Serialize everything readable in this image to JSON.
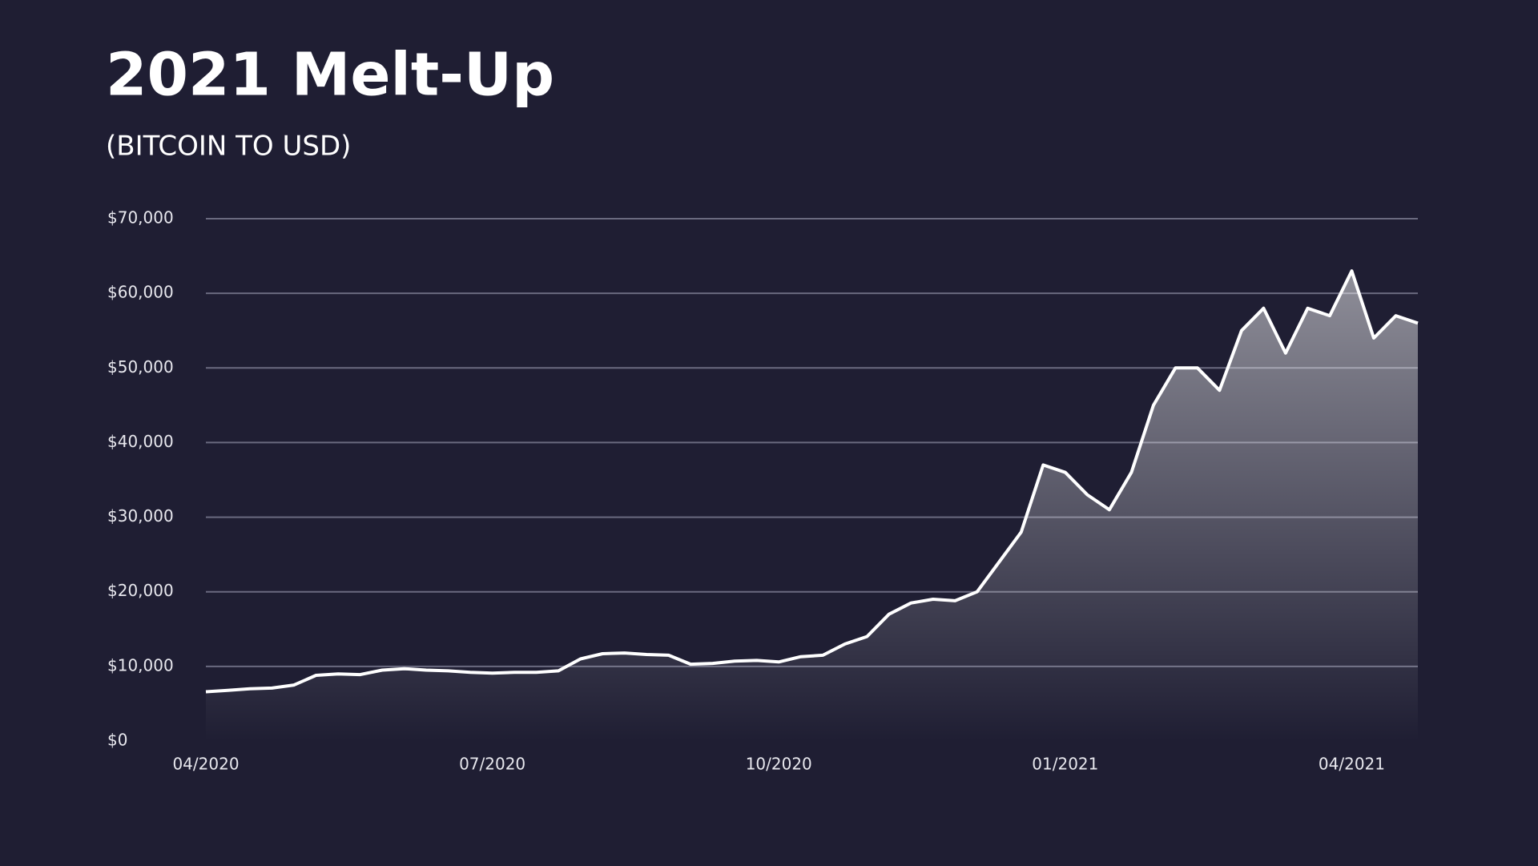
{
  "chart_data": {
    "type": "area",
    "title": "2021 Melt-Up",
    "subtitle": "(BITCOIN TO USD)",
    "categories": [
      "04/2020",
      null,
      null,
      null,
      null,
      null,
      null,
      null,
      null,
      null,
      null,
      null,
      null,
      "07/2020",
      null,
      null,
      null,
      null,
      null,
      null,
      null,
      null,
      null,
      null,
      null,
      null,
      "10/2020",
      null,
      null,
      null,
      null,
      null,
      null,
      null,
      null,
      null,
      null,
      null,
      null,
      "01/2021",
      null,
      null,
      null,
      null,
      null,
      null,
      null,
      null,
      null,
      null,
      null,
      null,
      "04/2021",
      null,
      null,
      null
    ],
    "values": [
      6600,
      6800,
      7000,
      7100,
      7500,
      8800,
      9000,
      8900,
      9500,
      9700,
      9500,
      9400,
      9200,
      9100,
      9200,
      9200,
      9400,
      11000,
      11700,
      11800,
      11600,
      11500,
      10300,
      10400,
      10700,
      10800,
      10600,
      11300,
      11500,
      13000,
      14000,
      17000,
      18500,
      19000,
      18800,
      20000,
      24000,
      28000,
      37000,
      36000,
      33000,
      31000,
      36000,
      45000,
      50000,
      50000,
      47000,
      55000,
      58000,
      52000,
      58000,
      57000,
      63000,
      54000,
      57000,
      56000
    ],
    "color": "#ffffff",
    "ylim": [
      0,
      70000
    ],
    "yticks": [
      {
        "value": 0,
        "label": "$0"
      },
      {
        "value": 10000,
        "label": "$10,000"
      },
      {
        "value": 20000,
        "label": "$20,000"
      },
      {
        "value": 30000,
        "label": "$30,000"
      },
      {
        "value": 40000,
        "label": "$40,000"
      },
      {
        "value": 50000,
        "label": "$50,000"
      },
      {
        "value": 60000,
        "label": "$60,000"
      },
      {
        "value": 70000,
        "label": "$70,000"
      }
    ],
    "grid": true
  }
}
